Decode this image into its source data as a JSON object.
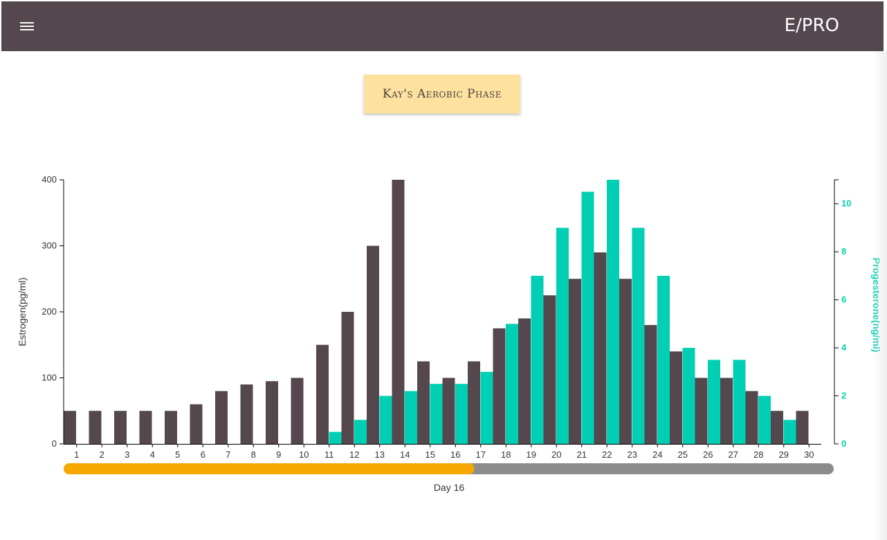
{
  "header": {
    "menu_icon": "hamburger-menu-icon",
    "app_title": "E/PRO",
    "background": "#54474d"
  },
  "phase_badge": {
    "label": "Kay's Aerobic Phase",
    "background": "#fde29f"
  },
  "colors": {
    "estrogen": "#54474d",
    "progesterone": "#00cfb3",
    "slider_progress": "#f7a800",
    "slider_track": "#8c8c8c"
  },
  "slider": {
    "current_day": 16,
    "total_days": 30,
    "label": "Day 16"
  },
  "chart_data": {
    "type": "bar",
    "categories": [
      "1",
      "2",
      "3",
      "4",
      "5",
      "6",
      "7",
      "8",
      "9",
      "10",
      "11",
      "12",
      "13",
      "14",
      "15",
      "16",
      "17",
      "18",
      "19",
      "20",
      "21",
      "22",
      "23",
      "24",
      "25",
      "26",
      "27",
      "28",
      "29",
      "30"
    ],
    "ylabel": "Estrogen(pg/ml)",
    "ylim": [
      0,
      400
    ],
    "y_ticks": [
      0,
      100,
      200,
      300,
      400
    ],
    "y2label": "Progesterone(ng/ml)",
    "y2lim": [
      0,
      11
    ],
    "y2_ticks": [
      0,
      2,
      4,
      6,
      8,
      10
    ],
    "grid": false,
    "series": [
      {
        "name": "Estrogen",
        "axis": "left",
        "values": [
          50,
          50,
          50,
          50,
          50,
          60,
          80,
          90,
          95,
          100,
          150,
          200,
          300,
          400,
          125,
          100,
          125,
          175,
          190,
          225,
          250,
          290,
          250,
          180,
          140,
          100,
          100,
          80,
          50,
          50
        ]
      },
      {
        "name": "Progesterone",
        "axis": "right",
        "values": [
          0,
          0,
          0,
          0,
          0,
          0,
          0,
          0,
          0,
          0,
          0.5,
          1,
          2,
          2.2,
          2.5,
          2.5,
          3,
          5,
          7,
          9,
          10.5,
          11,
          9,
          7,
          4,
          3.5,
          3.5,
          2,
          1,
          0
        ]
      }
    ]
  }
}
